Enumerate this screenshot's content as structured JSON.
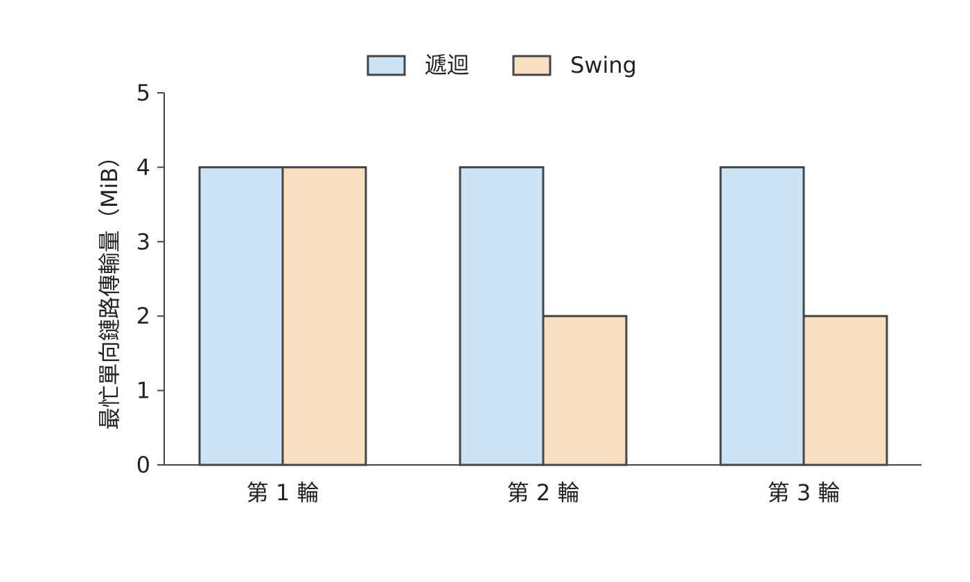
{
  "chart_data": {
    "type": "bar",
    "categories": [
      "第 1 輪",
      "第 2 輪",
      "第 3 輪"
    ],
    "series": [
      {
        "name": "遞迴",
        "color": "#cde3f3",
        "values": [
          4,
          4,
          4
        ]
      },
      {
        "name": "Swing",
        "color": "#f8dfc0",
        "values": [
          4,
          2,
          2
        ]
      }
    ],
    "y_label": "最忙單向鏈路傳輸量（MiB）",
    "ylim": [
      0,
      5
    ],
    "yticks": [
      0,
      1,
      2,
      3,
      4,
      5
    ],
    "legend": "top",
    "grid": false
  }
}
